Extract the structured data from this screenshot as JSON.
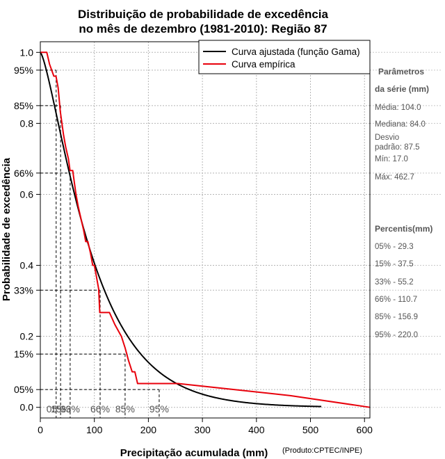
{
  "chart_data": {
    "type": "line",
    "title_line1": "Distribuição de probabilidade de excedência",
    "title_line2": "no mês de dezembro (1981-2010): Região 87",
    "xlabel": "Precipitação acumulada (mm)",
    "ylabel": "Probabilidade de excedência",
    "credit": "(Produto:CPTEC/INPE)",
    "xlim": [
      0,
      610
    ],
    "ylim": [
      -0.03,
      1.03
    ],
    "grid": true,
    "x_ticks": [
      0,
      100,
      200,
      300,
      400,
      500,
      600
    ],
    "x_tick_labels": [
      "0",
      "100",
      "200",
      "300",
      "400",
      "500",
      "600"
    ],
    "y_ticks": [
      {
        "value": 1.0,
        "label": "1.0"
      },
      {
        "value": 0.95,
        "label": "95%"
      },
      {
        "value": 0.85,
        "label": "85%"
      },
      {
        "value": 0.8,
        "label": "0.8"
      },
      {
        "value": 0.66,
        "label": "66%"
      },
      {
        "value": 0.6,
        "label": "0.6"
      },
      {
        "value": 0.4,
        "label": "0.4"
      },
      {
        "value": 0.33,
        "label": "33%"
      },
      {
        "value": 0.2,
        "label": "0.2"
      },
      {
        "value": 0.15,
        "label": "15%"
      },
      {
        "value": 0.05,
        "label": "05%"
      },
      {
        "value": 0.0,
        "label": "0.0"
      }
    ],
    "legend": {
      "position": "top-right",
      "entries": [
        {
          "label": "Curva ajustada (função Gama)",
          "color": "#000000"
        },
        {
          "label": "Curva empírica",
          "color": "#e8000b"
        }
      ]
    },
    "series": [
      {
        "name": "Curva ajustada (função Gama)",
        "kind": "gamma",
        "color": "#000000",
        "shape": 1.42,
        "scale": 73.2,
        "x_max": 520
      },
      {
        "name": "Curva empírica",
        "kind": "step",
        "color": "#e8000b",
        "x": [
          0,
          12,
          17,
          25,
          29,
          33,
          37,
          43,
          47,
          52,
          55,
          60,
          63,
          66,
          70,
          75,
          80,
          84,
          88,
          93,
          97,
          100,
          104,
          108,
          110,
          118,
          128,
          138,
          150,
          157,
          163,
          170,
          175,
          180,
          255,
          462.7,
          610
        ],
        "y": [
          1.0,
          1.0,
          0.967,
          0.933,
          0.933,
          0.9,
          0.833,
          0.767,
          0.733,
          0.7,
          0.667,
          0.667,
          0.633,
          0.6,
          0.567,
          0.533,
          0.5,
          0.467,
          0.467,
          0.433,
          0.4,
          0.4,
          0.367,
          0.333,
          0.267,
          0.267,
          0.267,
          0.233,
          0.2,
          0.167,
          0.133,
          0.1,
          0.1,
          0.067,
          0.067,
          0.033,
          0.0
        ]
      }
    ],
    "percentile_markers": [
      {
        "label": "05%",
        "x": 29.3,
        "y": 0.95
      },
      {
        "label": "15%",
        "x": 37.5,
        "y": 0.85
      },
      {
        "label": "33%",
        "x": 55.2,
        "y": 0.66
      },
      {
        "label": "66%",
        "x": 110.7,
        "y": 0.33
      },
      {
        "label": "85%",
        "x": 156.9,
        "y": 0.15
      },
      {
        "label": "95%",
        "x": 220.0,
        "y": 0.05
      }
    ]
  },
  "sidebar": {
    "params_heading_1": "Parâmetros",
    "params_heading_2": "da série (mm)",
    "params": [
      "Média: 104.0",
      "Mediana: 84.0",
      "Desvio",
      "padrão: 87.5",
      "Mín: 17.0",
      "Máx: 462.7"
    ],
    "percentis_heading": "Percentis(mm)",
    "percentis": [
      "05% - 29.3",
      "15% - 37.5",
      "33% - 55.2",
      "66% - 110.7",
      "85% - 156.9",
      "95% - 220.0"
    ]
  }
}
